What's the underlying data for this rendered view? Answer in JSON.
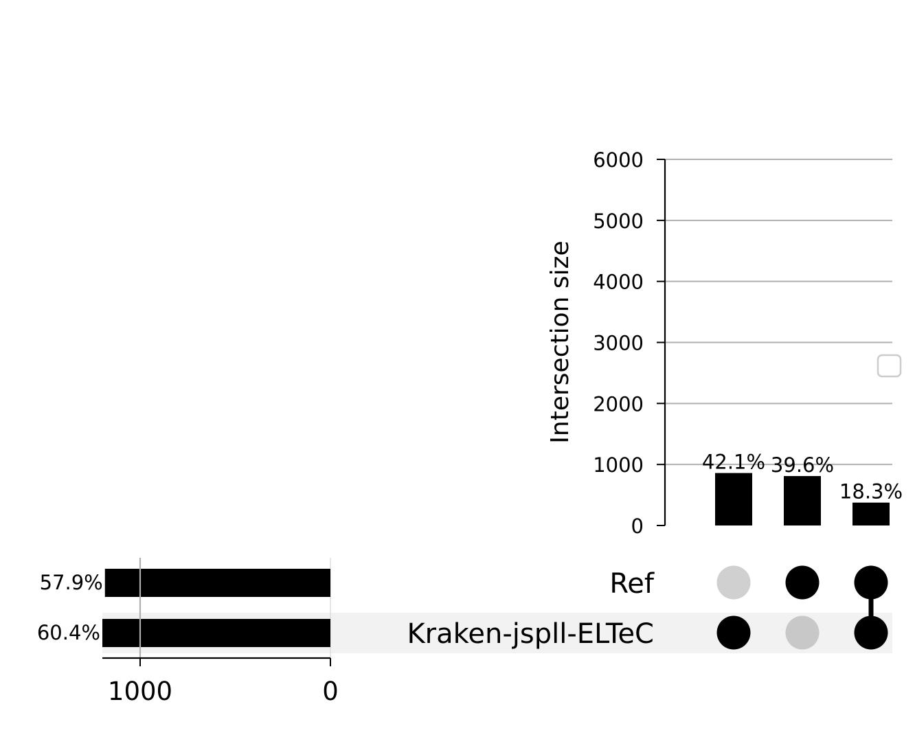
{
  "chart_data": {
    "type": "bar",
    "subtype": "upset",
    "intersections": {
      "ylabel": "Intersection size",
      "ylim": [
        0,
        6000
      ],
      "yticks": [
        0,
        1000,
        2000,
        3000,
        4000,
        5000,
        6000
      ],
      "grid": true,
      "values": [
        860,
        810,
        375
      ],
      "labels": [
        "42.1%",
        "39.6%",
        "18.3%"
      ],
      "membership": [
        [
          "Kraken-jspll-ELTeC"
        ],
        [
          "Ref"
        ],
        [
          "Ref",
          "Kraken-jspll-ELTeC"
        ]
      ]
    },
    "sets": {
      "names": [
        "Ref",
        "Kraken-jspll-ELTeC"
      ],
      "sizes": [
        1185,
        1235
      ],
      "labels": [
        "57.9%",
        "60.4%"
      ],
      "xlim": [
        1250,
        0
      ],
      "xticks": [
        1000,
        0
      ],
      "xtick_labels": [
        "1000",
        "0"
      ]
    },
    "legend": "right, empty"
  },
  "colors": {
    "bar": "#000000",
    "grid": "#b0b0b0",
    "dot_inactive": "#d0d0d0",
    "shade": "#f2f2f2",
    "legend_border": "#cccccc"
  }
}
